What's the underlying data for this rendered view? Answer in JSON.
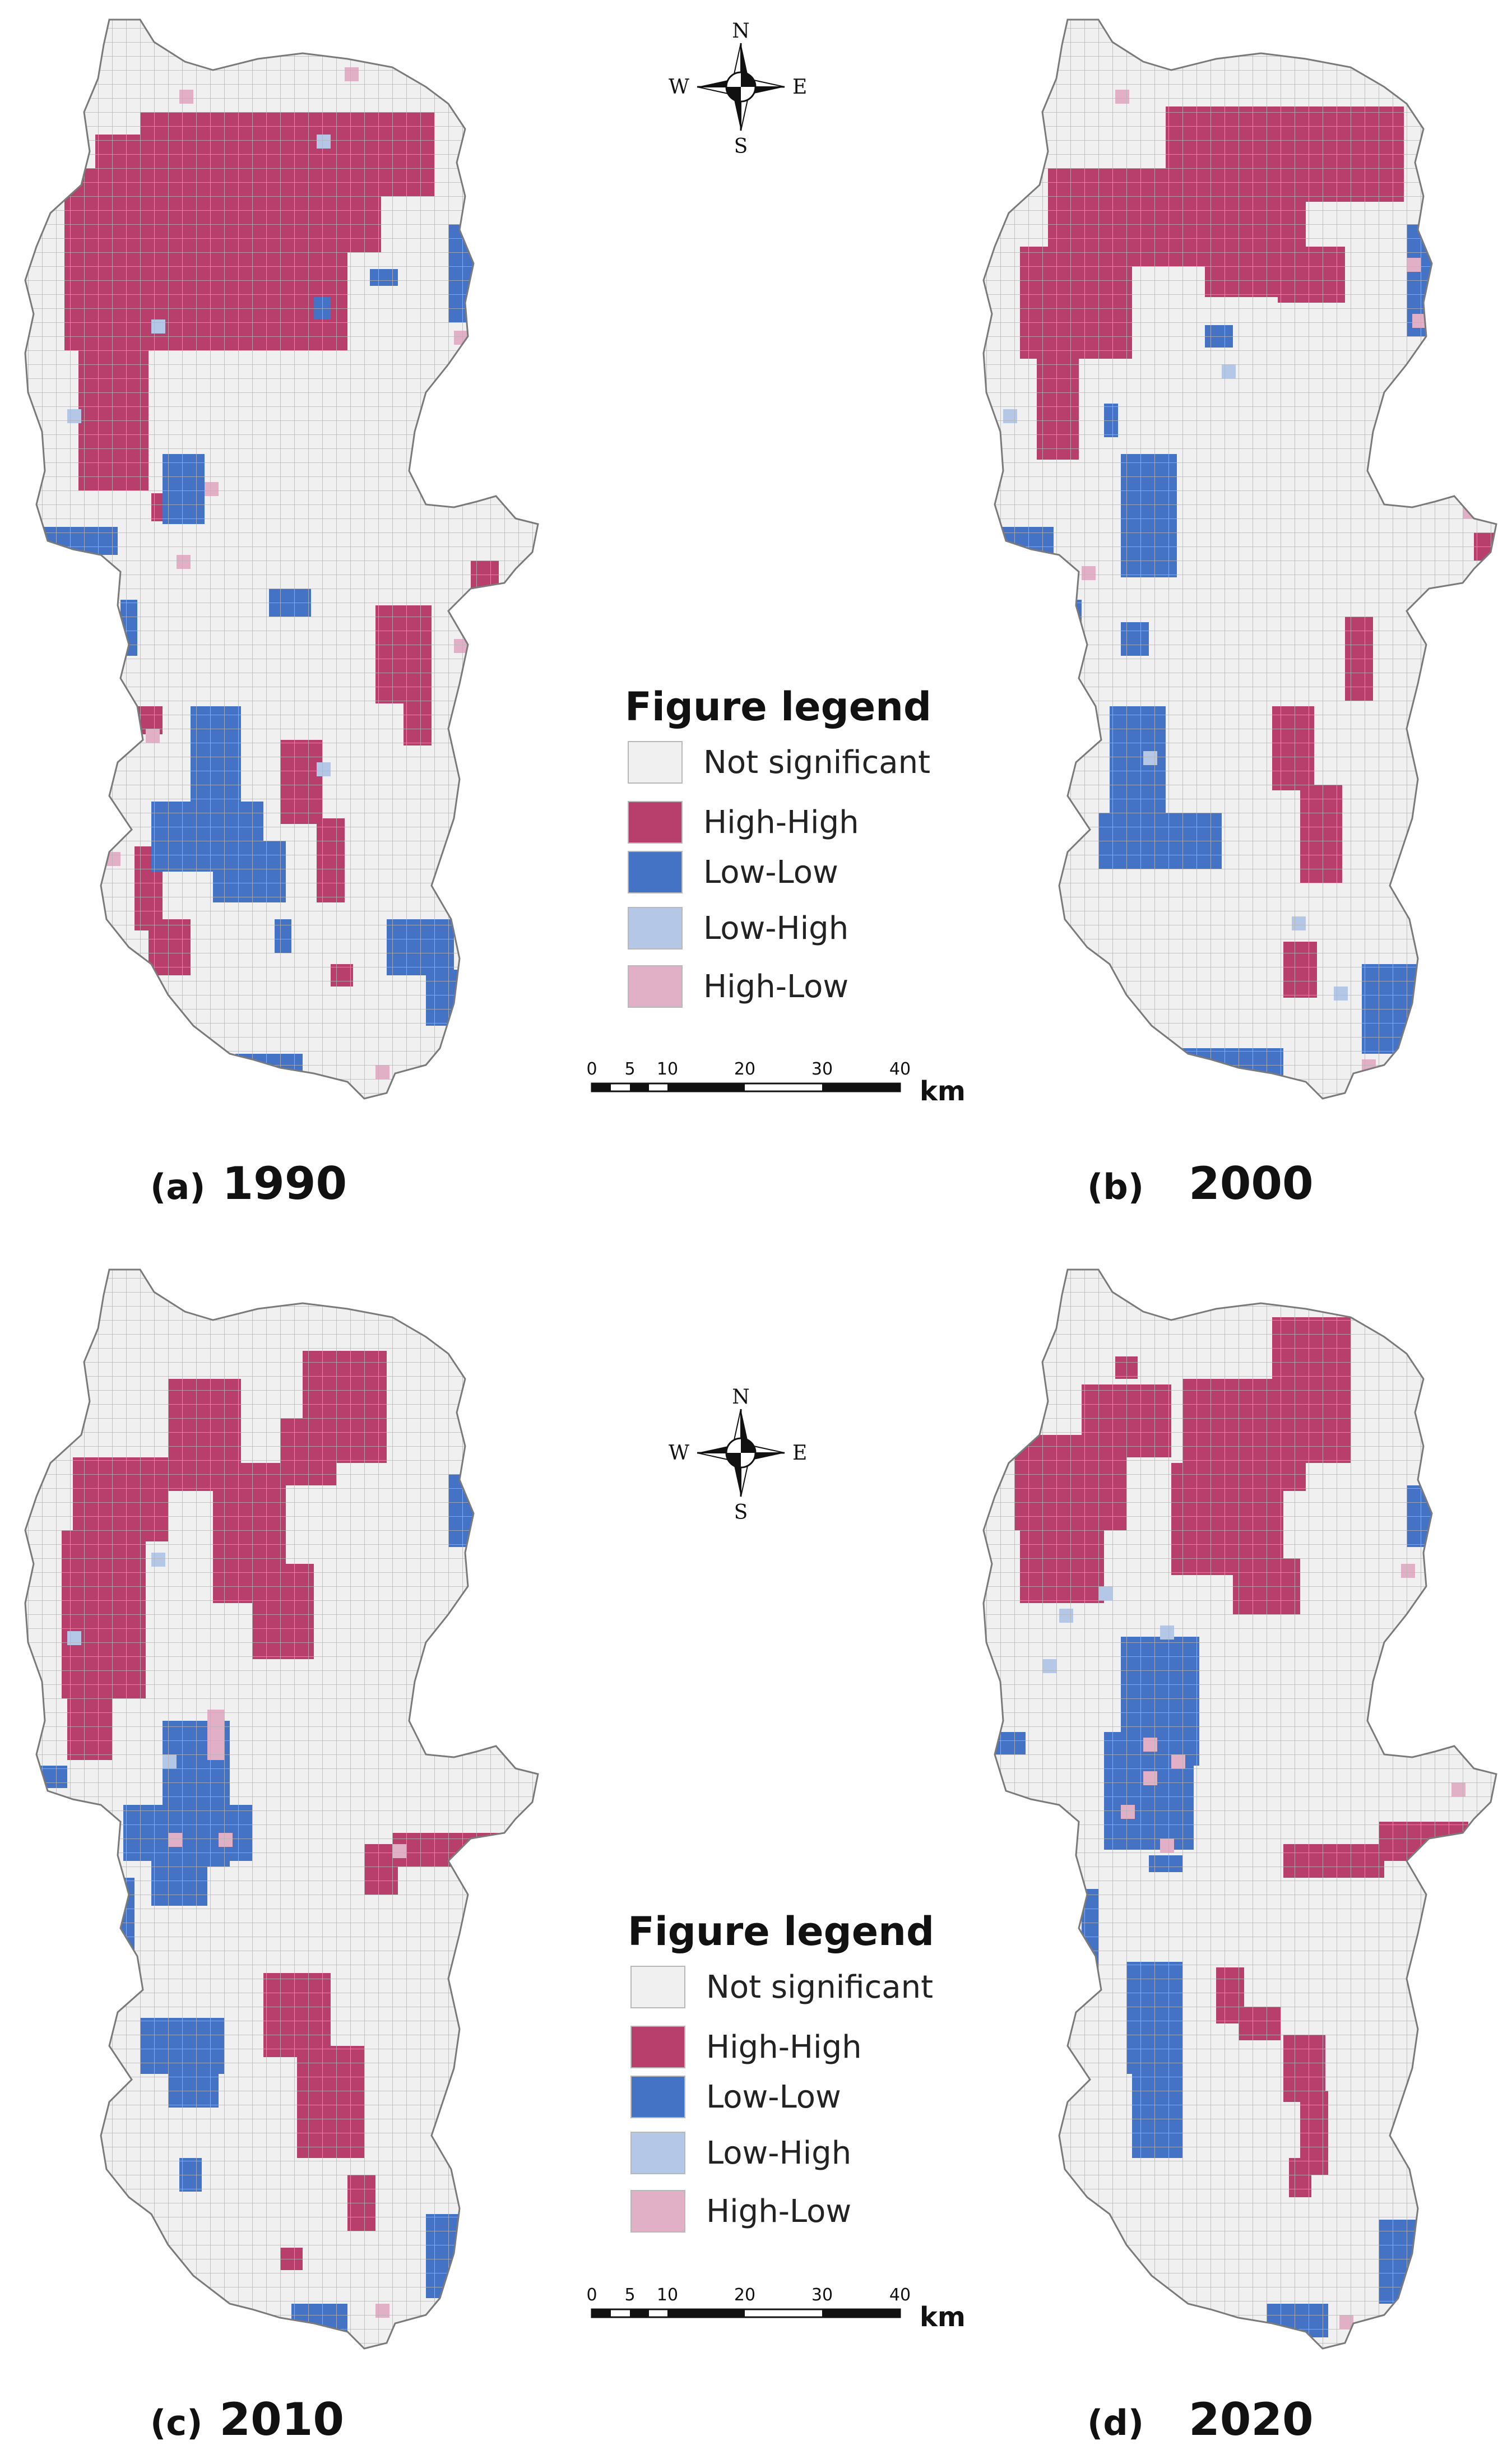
{
  "colors": {
    "not_significant": "#f0f0f0",
    "high_high": "#b83f6c",
    "low_low": "#4472c4",
    "low_high": "#b4c7e7",
    "high_low": "#e2b0c6",
    "grid_line": "#b5b5b5",
    "outline": "#7a7a7a"
  },
  "compass": {
    "n": "N",
    "s": "S",
    "e": "E",
    "w": "W"
  },
  "legend": {
    "title": "Figure legend",
    "items": [
      {
        "key": "not_significant",
        "label": "Not significant"
      },
      {
        "key": "high_high",
        "label": "High-High"
      },
      {
        "key": "low_low",
        "label": "Low-Low"
      },
      {
        "key": "low_high",
        "label": "Low-High"
      },
      {
        "key": "high_low",
        "label": "High-Low"
      }
    ]
  },
  "scale_bar": {
    "ticks": [
      "0",
      "5",
      "10",
      "20",
      "30",
      "40"
    ],
    "unit": "km"
  },
  "panels": [
    {
      "tag": "(a)",
      "year": "1990"
    },
    {
      "tag": "(b)",
      "year": "2000"
    },
    {
      "tag": "(c)",
      "year": "2010"
    },
    {
      "tag": "(d)",
      "year": "2020"
    }
  ]
}
